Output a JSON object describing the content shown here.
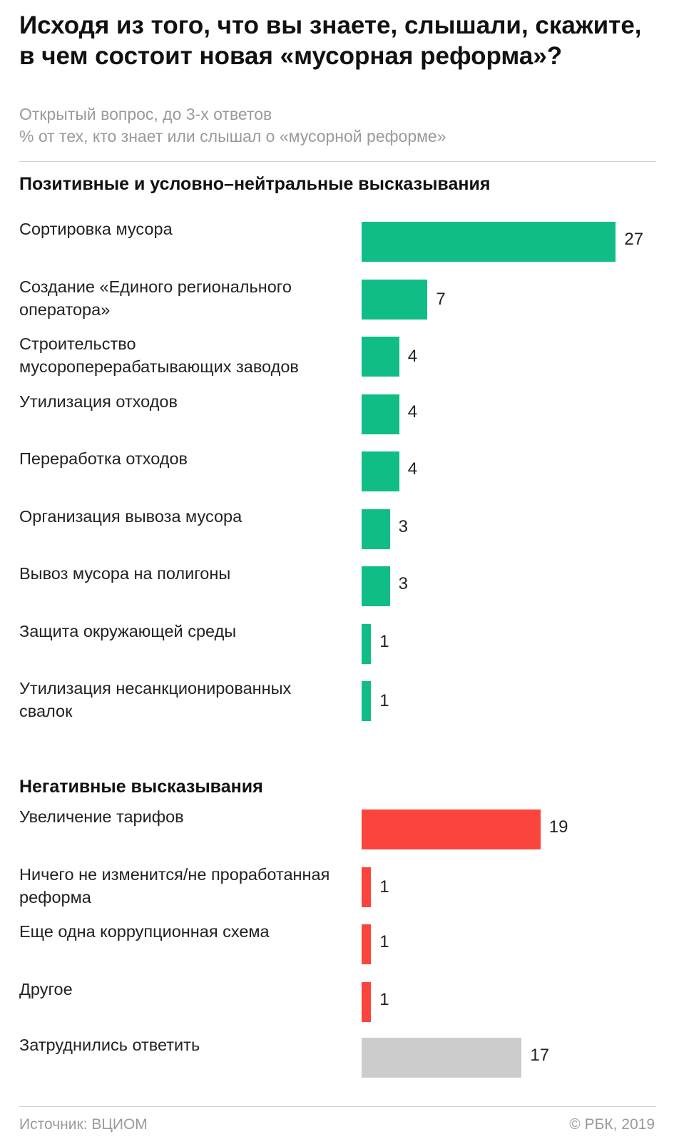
{
  "title": "Исходя из того, что вы знаете, слышали, скажите, в чем состоит новая «мусорная реформа»?",
  "subtitle_1": "Открытый вопрос, до 3-х ответов",
  "subtitle_2": "% от тех, кто знает или слышал о «мусорной реформе»",
  "footer_source": "Источник: ВЦИОМ",
  "footer_copyright": "© РБК, 2019",
  "colors": {
    "positive": "#11bd86",
    "negative": "#fa443d",
    "neutral": "#cccccc"
  },
  "chart_data": {
    "type": "bar",
    "orientation": "horizontal",
    "title": "Исходя из того, что вы знаете, слышали, скажите, в чем состоит новая «мусорная реформа»?",
    "unit": "%",
    "groups": [
      {
        "name": "Позитивные и условно–нейтральные высказывания",
        "color": "#11bd86",
        "categories": [
          "Сортировка мусора",
          "Создание «Единого регионального оператора»",
          "Строительство мусороперерабатывающих заводов",
          "Утилизация отходов",
          "Переработка отходов",
          "Организация вывоза мусора",
          "Вывоз мусора на полигоны",
          "Защита окружающей среды",
          "Утилизация несанкционированных свалок"
        ],
        "values": [
          27,
          7,
          4,
          4,
          4,
          3,
          3,
          1,
          1
        ]
      },
      {
        "name": "Негативные высказывания",
        "color": "#fa443d",
        "categories": [
          "Увеличение тарифов",
          "Ничего не изменится/не проработанная реформа",
          "Еще одна коррупционная схема",
          "Другое"
        ],
        "values": [
          19,
          1,
          1,
          1
        ]
      },
      {
        "name": "",
        "color": "#cccccc",
        "categories": [
          "Затруднились ответить"
        ],
        "values": [
          17
        ]
      }
    ]
  }
}
